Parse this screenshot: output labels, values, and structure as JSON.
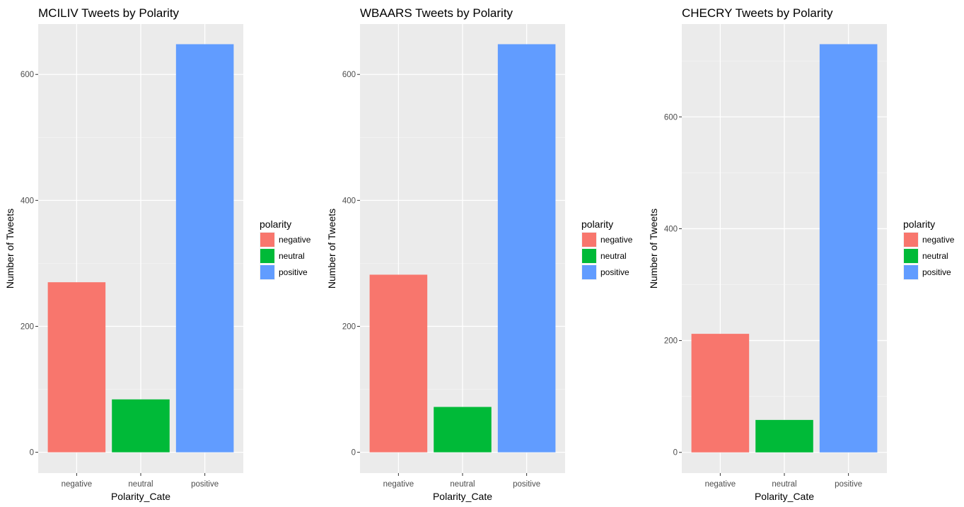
{
  "chart_data": [
    {
      "type": "bar",
      "title": "MCILIV Tweets by Polarity",
      "xlabel": "Polarity_Cate",
      "ylabel": "Number of Tweets",
      "categories": [
        "negative",
        "neutral",
        "positive"
      ],
      "values": [
        270,
        84,
        648
      ],
      "colors": [
        "#F8766D",
        "#00BA38",
        "#619CFF"
      ],
      "ylim": [
        -33,
        680
      ],
      "yticks": [
        0,
        200,
        400,
        600
      ],
      "legend": {
        "title": "polarity",
        "position": "right",
        "items": [
          "negative",
          "neutral",
          "positive"
        ]
      },
      "grid": true
    },
    {
      "type": "bar",
      "title": "WBAARS Tweets by Polarity",
      "xlabel": "Polarity_Cate",
      "ylabel": "Number of Tweets",
      "categories": [
        "negative",
        "neutral",
        "positive"
      ],
      "values": [
        282,
        72,
        648
      ],
      "colors": [
        "#F8766D",
        "#00BA38",
        "#619CFF"
      ],
      "ylim": [
        -33,
        680
      ],
      "yticks": [
        0,
        200,
        400,
        600
      ],
      "legend": {
        "title": "polarity",
        "position": "right",
        "items": [
          "negative",
          "neutral",
          "positive"
        ]
      },
      "grid": true
    },
    {
      "type": "bar",
      "title": "CHECRY Tweets by Polarity",
      "xlabel": "Polarity_Cate",
      "ylabel": "Number of Tweets",
      "categories": [
        "negative",
        "neutral",
        "positive"
      ],
      "values": [
        212,
        58,
        730
      ],
      "colors": [
        "#F8766D",
        "#00BA38",
        "#619CFF"
      ],
      "ylim": [
        -37,
        766
      ],
      "yticks": [
        0,
        200,
        400,
        600
      ],
      "legend": {
        "title": "polarity",
        "position": "right",
        "items": [
          "negative",
          "neutral",
          "positive"
        ]
      },
      "grid": true
    }
  ]
}
